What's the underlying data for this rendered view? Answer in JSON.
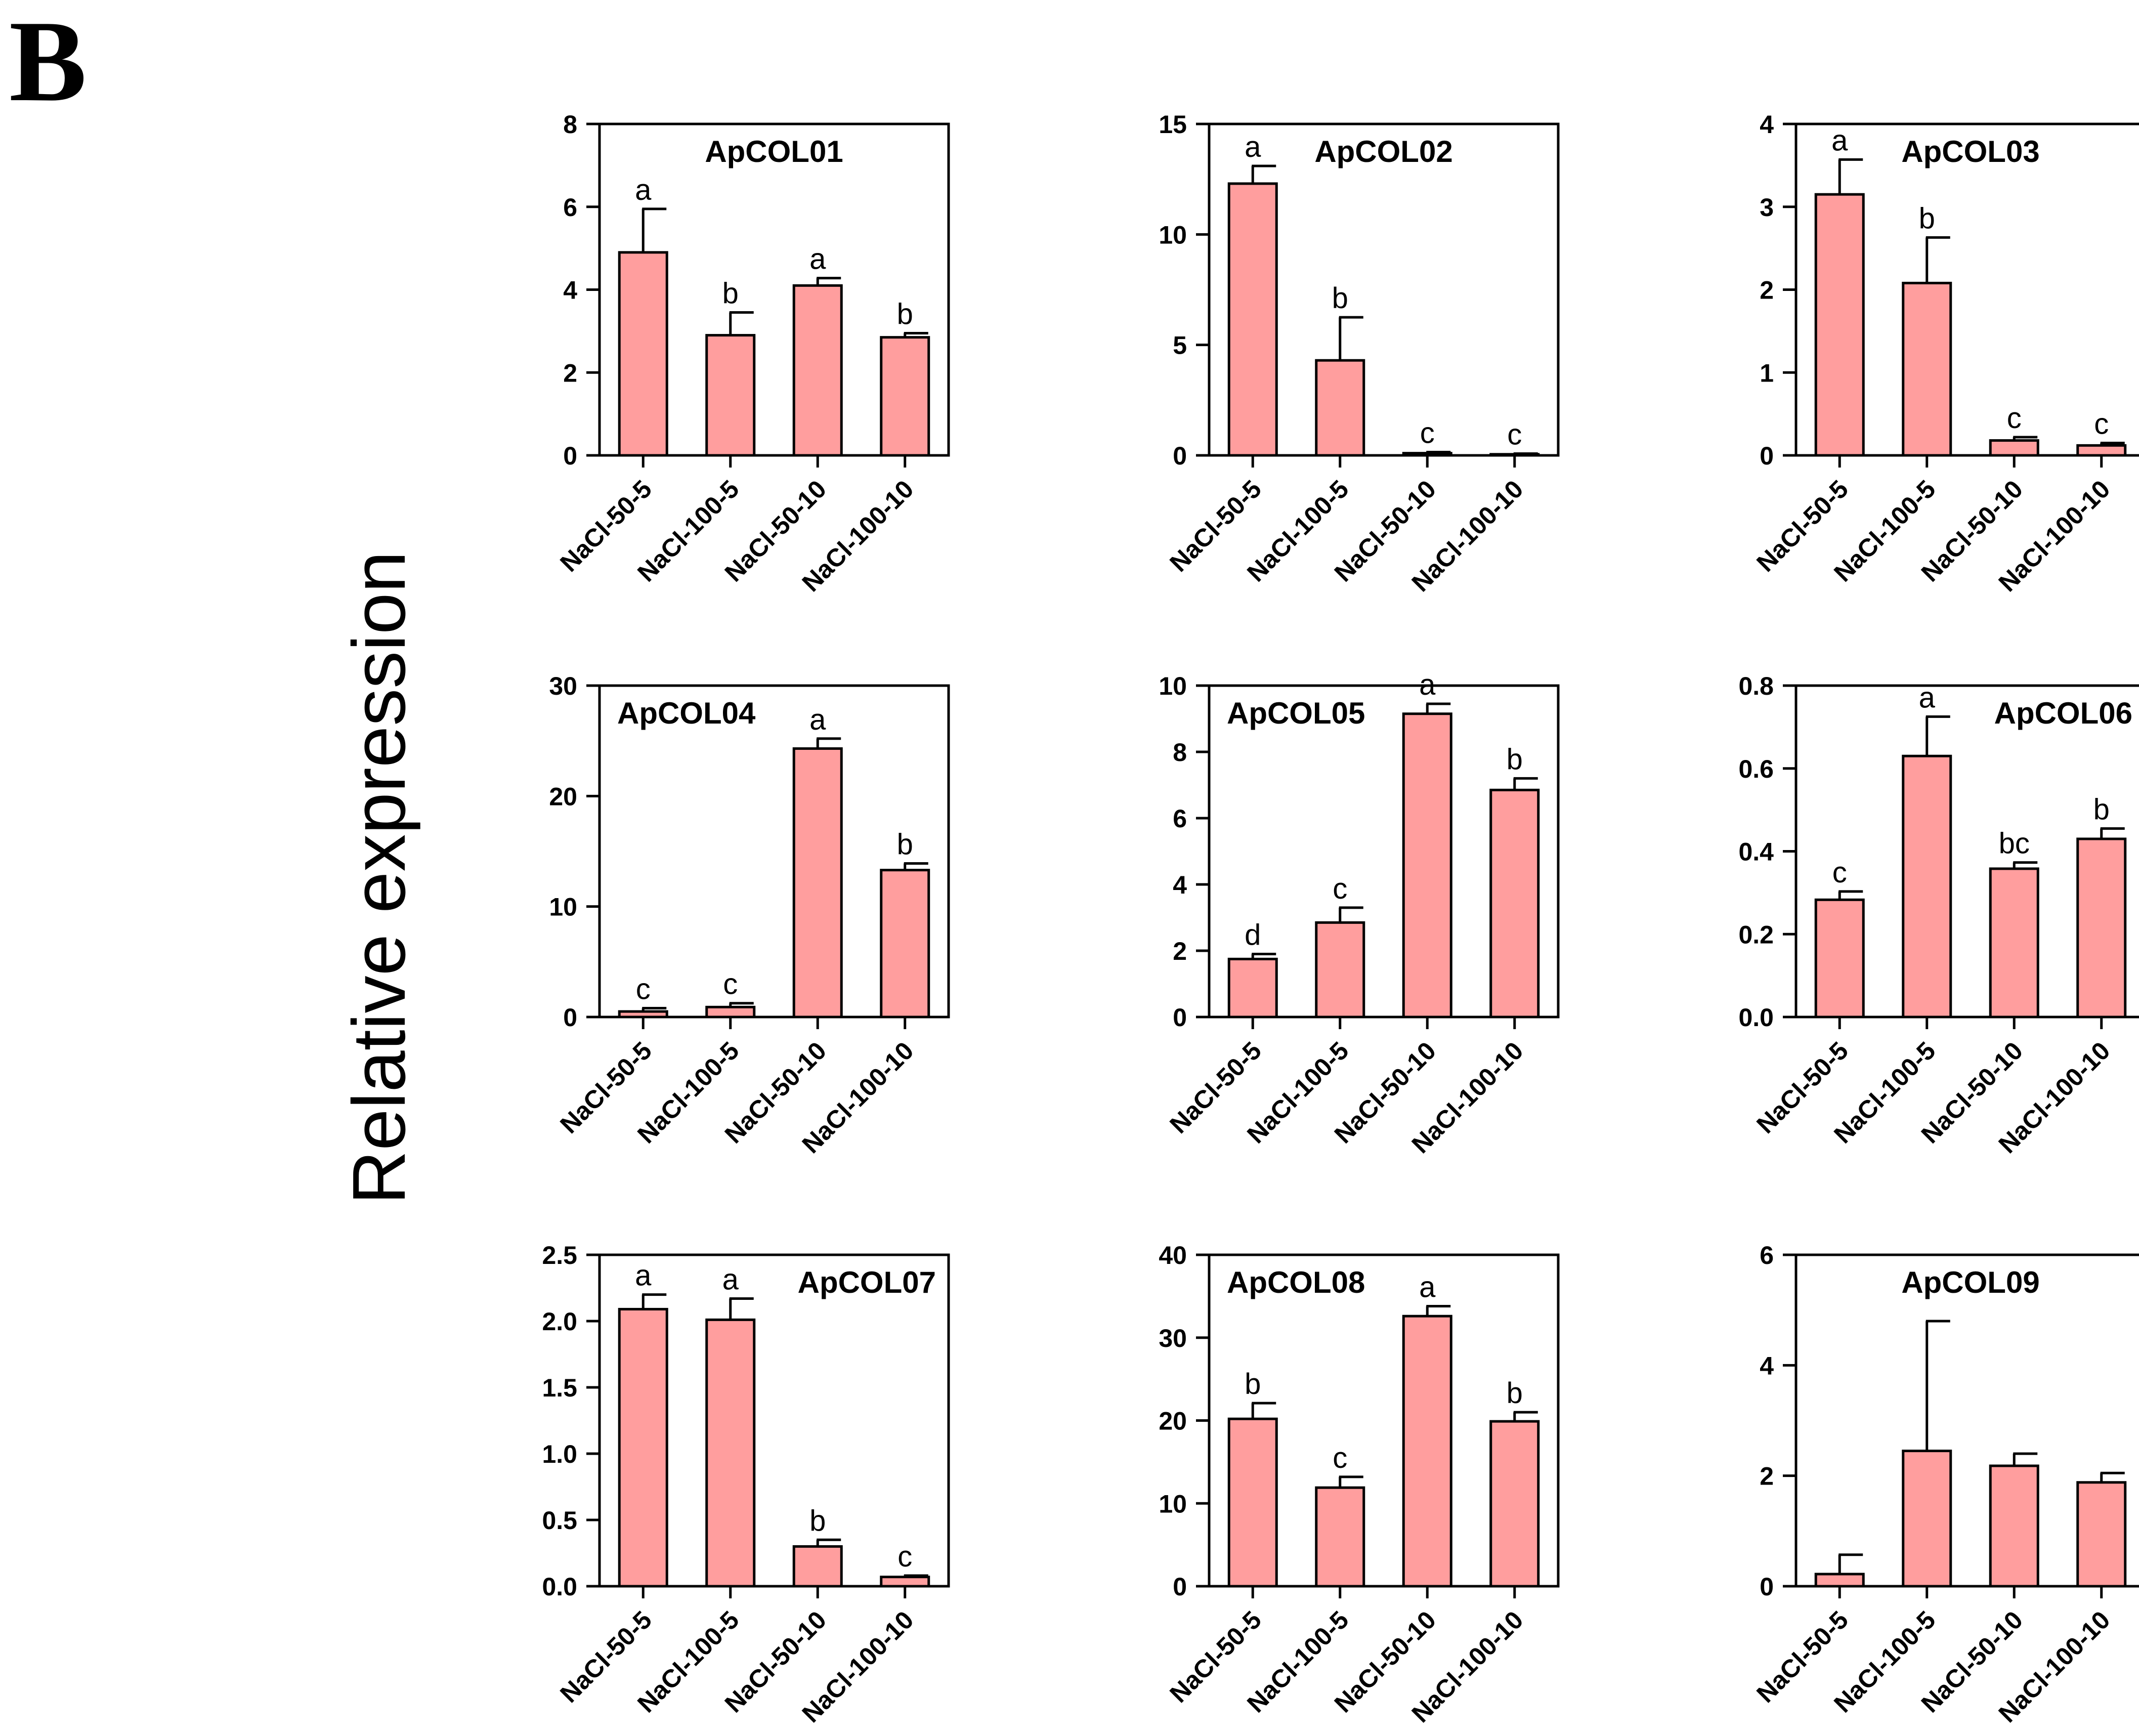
{
  "figure": {
    "panel_label": "B",
    "ylabel": "Relative expression"
  },
  "colors": {
    "bar_fill": "#FF9E9E",
    "stroke": "#000000"
  },
  "chart_data": [
    {
      "type": "bar",
      "title": "ApCOL01",
      "categories": [
        "NaCl-50-5",
        "NaCl-100-5",
        "NaCl-50-10",
        "NaCl-100-10"
      ],
      "values": [
        4.9,
        2.9,
        4.1,
        2.85
      ],
      "errors": [
        1.05,
        0.55,
        0.18,
        0.1
      ],
      "letters": [
        "a",
        "b",
        "a",
        "b"
      ],
      "ylim": [
        0,
        8
      ],
      "yticks": [
        "0",
        "2",
        "4",
        "6",
        "8"
      ],
      "title_pos": "top-center"
    },
    {
      "type": "bar",
      "title": "ApCOL02",
      "categories": [
        "NaCl-50-5",
        "NaCl-100-5",
        "NaCl-50-10",
        "NaCl-100-10"
      ],
      "values": [
        12.3,
        4.3,
        0.1,
        0.05
      ],
      "errors": [
        0.8,
        1.95,
        0.05,
        0.03
      ],
      "letters": [
        "a",
        "b",
        "c",
        "c"
      ],
      "ylim": [
        0,
        15
      ],
      "yticks": [
        "0",
        "5",
        "10",
        "15"
      ],
      "title_pos": "top-center"
    },
    {
      "type": "bar",
      "title": "ApCOL03",
      "categories": [
        "NaCl-50-5",
        "NaCl-100-5",
        "NaCl-50-10",
        "NaCl-100-10"
      ],
      "values": [
        3.15,
        2.08,
        0.18,
        0.12
      ],
      "errors": [
        0.42,
        0.55,
        0.04,
        0.03
      ],
      "letters": [
        "a",
        "b",
        "c",
        "c"
      ],
      "ylim": [
        0,
        4
      ],
      "yticks": [
        "0",
        "1",
        "2",
        "3",
        "4"
      ],
      "title_pos": "top-center"
    },
    {
      "type": "bar",
      "title": "ApCOL04",
      "categories": [
        "NaCl-50-5",
        "NaCl-100-5",
        "NaCl-50-10",
        "NaCl-100-10"
      ],
      "values": [
        0.5,
        0.9,
        24.3,
        13.3
      ],
      "errors": [
        0.3,
        0.35,
        0.9,
        0.6
      ],
      "letters": [
        "c",
        "c",
        "a",
        "b"
      ],
      "ylim": [
        0,
        30
      ],
      "yticks": [
        "0",
        "10",
        "20",
        "30"
      ],
      "title_pos": "top-left"
    },
    {
      "type": "bar",
      "title": "ApCOL05",
      "categories": [
        "NaCl-50-5",
        "NaCl-100-5",
        "NaCl-50-10",
        "NaCl-100-10"
      ],
      "values": [
        1.75,
        2.85,
        9.15,
        6.85
      ],
      "errors": [
        0.15,
        0.45,
        0.3,
        0.35
      ],
      "letters": [
        "d",
        "c",
        "a",
        "b"
      ],
      "ylim": [
        0,
        10
      ],
      "yticks": [
        "0",
        "2",
        "4",
        "6",
        "8",
        "10"
      ],
      "title_pos": "top-left"
    },
    {
      "type": "bar",
      "title": "ApCOL06",
      "categories": [
        "NaCl-50-5",
        "NaCl-100-5",
        "NaCl-50-10",
        "NaCl-100-10"
      ],
      "values": [
        0.283,
        0.63,
        0.358,
        0.43
      ],
      "errors": [
        0.02,
        0.095,
        0.015,
        0.025
      ],
      "letters": [
        "c",
        "a",
        "bc",
        "b"
      ],
      "ylim": [
        0,
        0.8
      ],
      "yticks": [
        "0.0",
        "0.2",
        "0.4",
        "0.6",
        "0.8"
      ],
      "title_pos": "top-right"
    },
    {
      "type": "bar",
      "title": "ApCOL07",
      "categories": [
        "NaCl-50-5",
        "NaCl-100-5",
        "NaCl-50-10",
        "NaCl-100-10"
      ],
      "values": [
        2.09,
        2.01,
        0.3,
        0.07
      ],
      "errors": [
        0.11,
        0.16,
        0.05,
        0.01
      ],
      "letters": [
        "a",
        "a",
        "b",
        "c"
      ],
      "ylim": [
        0,
        2.5
      ],
      "yticks": [
        "0.0",
        "0.5",
        "1.0",
        "1.5",
        "2.0",
        "2.5"
      ],
      "title_pos": "top-right"
    },
    {
      "type": "bar",
      "title": "ApCOL08",
      "categories": [
        "NaCl-50-5",
        "NaCl-100-5",
        "NaCl-50-10",
        "NaCl-100-10"
      ],
      "values": [
        20.2,
        11.9,
        32.6,
        19.9
      ],
      "errors": [
        1.9,
        1.3,
        1.2,
        1.1
      ],
      "letters": [
        "b",
        "c",
        "a",
        "b"
      ],
      "ylim": [
        0,
        40
      ],
      "yticks": [
        "0",
        "10",
        "20",
        "30",
        "40"
      ],
      "title_pos": "top-left"
    },
    {
      "type": "bar",
      "title": "ApCOL09",
      "categories": [
        "NaCl-50-5",
        "NaCl-100-5",
        "NaCl-50-10",
        "NaCl-100-10"
      ],
      "values": [
        0.22,
        2.45,
        2.18,
        1.88
      ],
      "errors": [
        0.35,
        2.35,
        0.22,
        0.17
      ],
      "letters": [
        "",
        "",
        "",
        ""
      ],
      "ylim": [
        0,
        6
      ],
      "yticks": [
        "0",
        "2",
        "4",
        "6"
      ],
      "title_pos": "top-center"
    }
  ]
}
